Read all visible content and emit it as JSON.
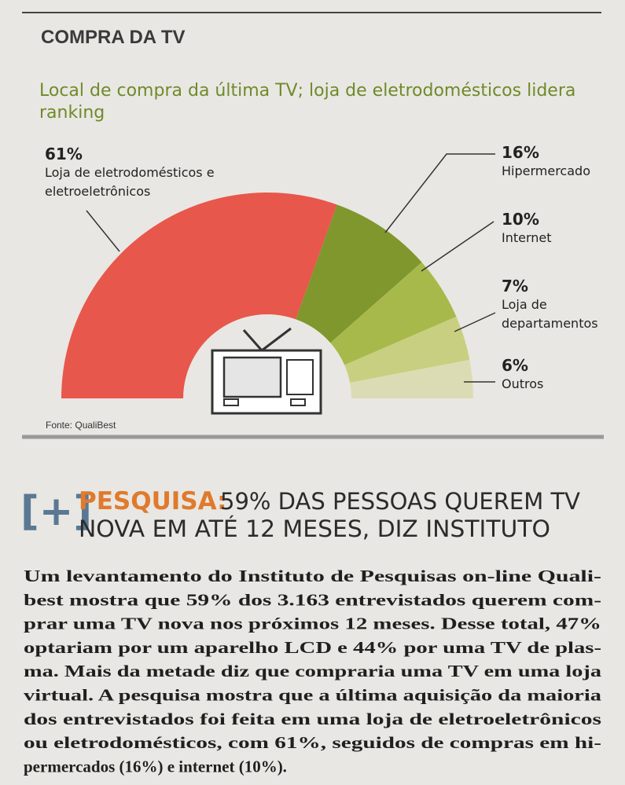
{
  "header": "COMPRA DA TV",
  "chart_data": {
    "type": "pie",
    "variant": "half-donut",
    "title": "Local de compra da última TV; loja de eletrodomésticos lidera ranking",
    "categories": [
      "Loja de eletrodomésticos e eletroeletrônicos",
      "Hipermercado",
      "Internet",
      "Loja de departamentos",
      "Outros"
    ],
    "values": [
      61,
      16,
      10,
      7,
      6
    ],
    "value_labels": [
      "61%",
      "16%",
      "10%",
      "7%",
      "6%"
    ],
    "colors": [
      "#e8574b",
      "#7f972c",
      "#a8b94c",
      "#c9cf80",
      "#dcdcb4"
    ],
    "source": "Fonte: QualiBest"
  },
  "article": {
    "tag": "[+]",
    "kicker": "PESQUISA:",
    "headline": [
      "59% DAS PESSOAS QUEREM TV",
      "NOVA EM ATÉ 12 MESES, DIZ INSTITUTO"
    ],
    "body": [
      "Um levantamento do Instituto de Pesquisas on-line Quali-",
      "best mostra que 59% dos 3.163 entrevistados querem com-",
      "prar uma TV nova nos próximos 12 meses. Desse total, 47%",
      "optariam por um aparelho LCD e 44% por uma TV de plas-",
      "ma. Mais da metade diz que compraria uma TV em uma loja",
      "virtual. A pesquisa mostra que a última aquisição da maioria",
      "dos entrevistados foi feita em uma loja de eletroeletrônicos",
      "ou eletrodomésticos, com 61%, seguidos de compras em hi-",
      "permercados (16%) e internet (10%)."
    ]
  }
}
